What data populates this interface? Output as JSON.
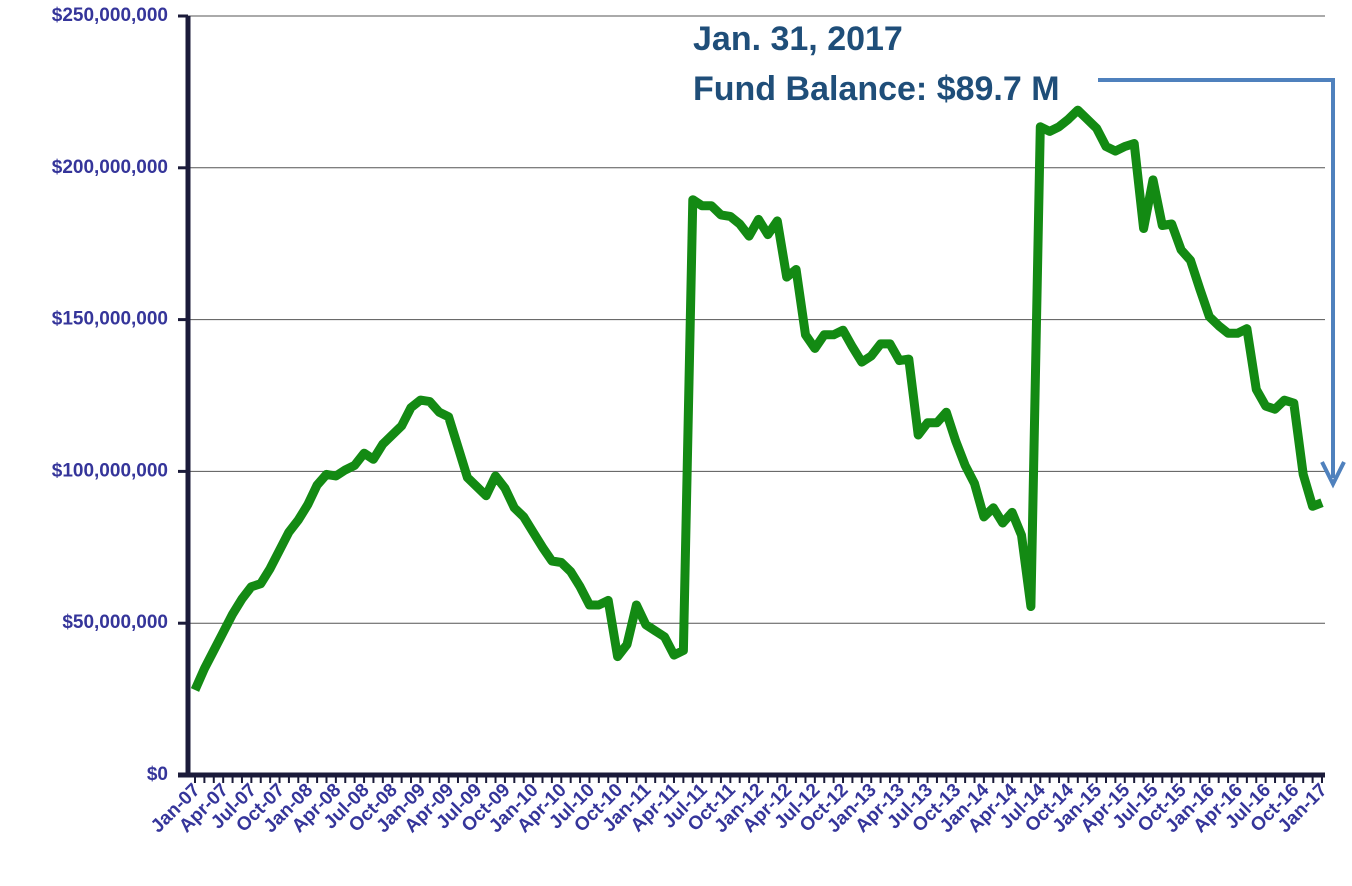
{
  "chart_data": {
    "type": "line",
    "annotations": [
      "Jan. 31, 2017",
      "Fund Balance: $89.7 M"
    ],
    "categories": [
      "Jan-07",
      null,
      null,
      "Apr-07",
      null,
      null,
      "Jul-07",
      null,
      null,
      "Oct-07",
      null,
      null,
      "Jan-08",
      null,
      null,
      "Apr-08",
      null,
      null,
      "Jul-08",
      null,
      null,
      "Oct-08",
      null,
      null,
      "Jan-09",
      null,
      null,
      "Apr-09",
      null,
      null,
      "Jul-09",
      null,
      null,
      "Oct-09",
      null,
      null,
      "Jan-10",
      null,
      null,
      "Apr-10",
      null,
      null,
      "Jul-10",
      null,
      null,
      "Oct-10",
      null,
      null,
      "Jan-11",
      null,
      null,
      "Apr-11",
      null,
      null,
      "Jul-11",
      null,
      null,
      "Oct-11",
      null,
      null,
      "Jan-12",
      null,
      null,
      "Apr-12",
      null,
      null,
      "Jul-12",
      null,
      null,
      "Oct-12",
      null,
      null,
      "Jan-13",
      null,
      null,
      "Apr-13",
      null,
      null,
      "Jul-13",
      null,
      null,
      "Oct-13",
      null,
      null,
      "Jan-14",
      null,
      null,
      "Apr-14",
      null,
      null,
      "Jul-14",
      null,
      null,
      "Oct-14",
      null,
      null,
      "Jan-15",
      null,
      null,
      "Apr-15",
      null,
      null,
      "Jul-15",
      null,
      null,
      "Oct-15",
      null,
      null,
      "Jan-16",
      null,
      null,
      "Apr-16",
      null,
      null,
      "Jul-16",
      null,
      null,
      "Oct-16",
      null,
      null,
      "Jan-17"
    ],
    "series": [
      {
        "name": "Fund Balance",
        "color": "#138a13",
        "values": [
          28000000,
          35000000,
          41000000,
          47000000,
          53000000,
          58000000,
          62000000,
          63000000,
          68000000,
          74000000,
          80000000,
          84000000,
          89000000,
          95500000,
          99000000,
          98500000,
          100500000,
          102000000,
          106000000,
          104000000,
          109000000,
          112000000,
          115000000,
          121000000,
          123500000,
          123000000,
          119500000,
          118000000,
          108000000,
          98000000,
          95000000,
          92000000,
          98500000,
          94500000,
          88000000,
          85000000,
          80000000,
          75000000,
          70500000,
          70000000,
          67000000,
          62000000,
          56000000,
          56000000,
          57500000,
          39000000,
          43000000,
          56000000,
          49500000,
          47500000,
          45500000,
          39500000,
          41000000,
          189500000,
          187500000,
          187500000,
          184500000,
          184000000,
          181500000,
          177500000,
          183000000,
          178000000,
          182500000,
          164000000,
          166500000,
          145000000,
          140500000,
          145000000,
          145000000,
          146500000,
          141000000,
          136000000,
          138000000,
          142000000,
          142000000,
          136500000,
          137000000,
          112000000,
          116000000,
          116000000,
          119500000,
          110000000,
          102000000,
          96000000,
          85000000,
          88000000,
          83000000,
          86500000,
          79000000,
          55500000,
          213500000,
          212000000,
          213500000,
          216000000,
          219000000,
          216000000,
          213000000,
          207000000,
          205500000,
          207000000,
          208000000,
          180000000,
          196000000,
          181000000,
          181500000,
          173000000,
          169500000,
          160000000,
          151000000,
          148000000,
          145500000,
          145500000,
          147000000,
          127000000,
          121500000,
          120500000,
          123500000,
          122500000,
          99000000,
          88500000,
          89700000
        ]
      }
    ],
    "ylim": [
      0,
      250000000
    ],
    "yticks": [
      {
        "value": 0,
        "label": "$0"
      },
      {
        "value": 50000000,
        "label": "$50,000,000"
      },
      {
        "value": 100000000,
        "label": "$100,000,000"
      },
      {
        "value": 150000000,
        "label": "$150,000,000"
      },
      {
        "value": 200000000,
        "label": "$200,000,000"
      },
      {
        "value": 250000000,
        "label": "$250,000,000"
      }
    ],
    "grid": true
  }
}
